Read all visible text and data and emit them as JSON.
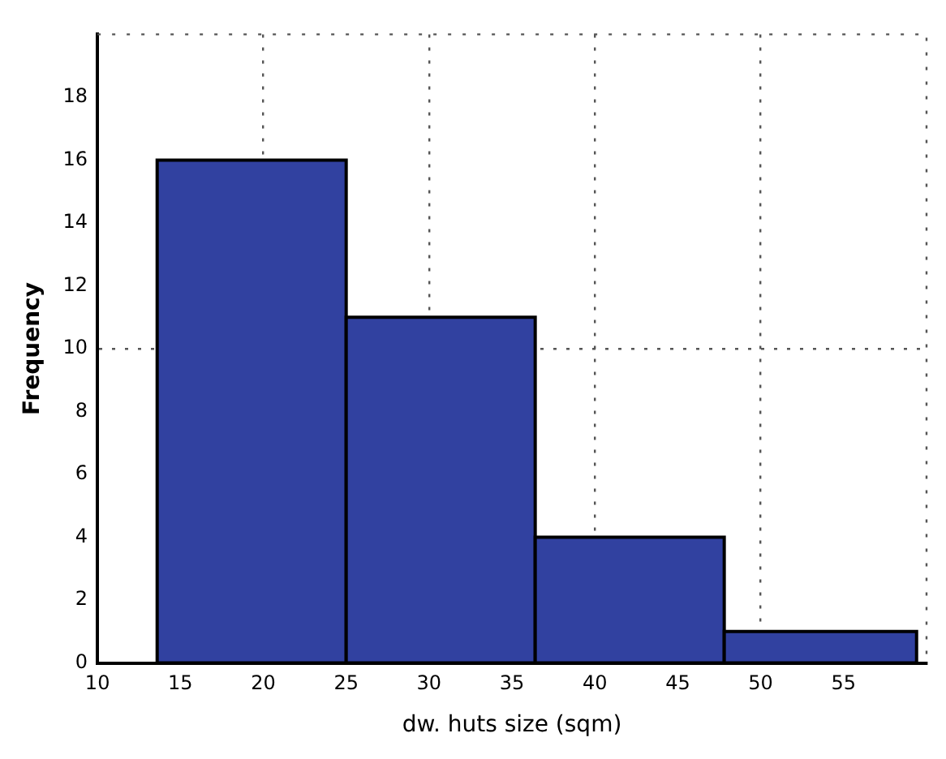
{
  "chart_data": {
    "type": "histogram",
    "xlabel": "dw. huts size (sqm)",
    "ylabel": "Frequency",
    "bins": [
      13.6,
      25,
      36.4,
      47.8,
      59.4
    ],
    "values": [
      16,
      11,
      4,
      1
    ],
    "color": "#3141a0",
    "xlim": [
      10,
      60
    ],
    "xticks": [
      10,
      15,
      20,
      25,
      30,
      35,
      40,
      45,
      50,
      55
    ],
    "ylim": [
      0,
      20
    ],
    "yticks": [
      0,
      2,
      4,
      6,
      8,
      10,
      12,
      14,
      16,
      18
    ],
    "grid": true
  }
}
